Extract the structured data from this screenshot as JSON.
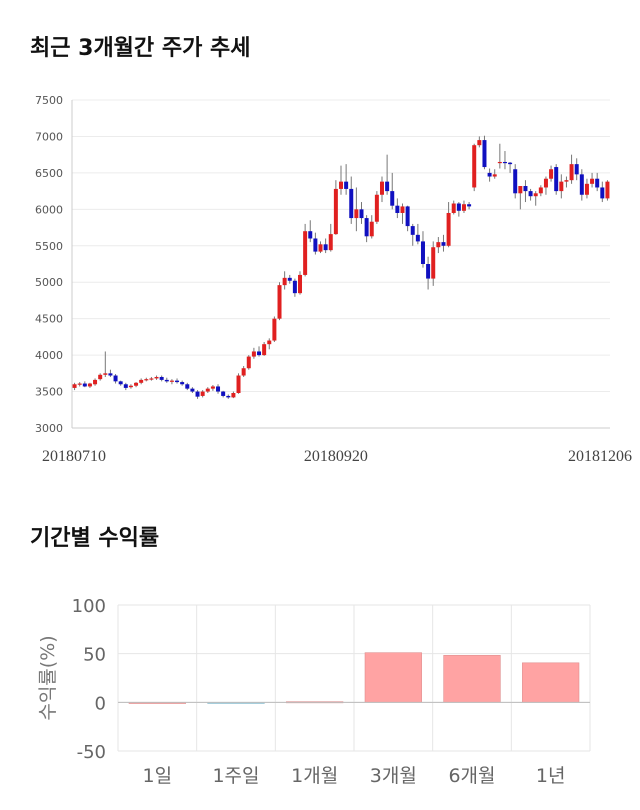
{
  "sections": {
    "price_title": "최근 3개월간 주가 추세",
    "returns_title": "기간별 수익률"
  },
  "chart_data": [
    {
      "type": "candlestick",
      "title": "최근 3개월간 주가 추세",
      "ylim": [
        3000,
        7500
      ],
      "yticks": [
        "3000",
        "3500",
        "4000",
        "4500",
        "5000",
        "5500",
        "6000",
        "6500",
        "7000",
        "7500"
      ],
      "xtick_labels": [
        "20180710",
        "20180920",
        "20181206"
      ],
      "xtick_index": [
        0,
        51,
        104
      ],
      "grid": true,
      "up_color": "#e02020",
      "down_color": "#1010c0",
      "candles": [
        [
          3550,
          3620,
          3520,
          3600
        ],
        [
          3600,
          3630,
          3570,
          3610
        ],
        [
          3610,
          3640,
          3560,
          3570
        ],
        [
          3570,
          3620,
          3550,
          3610
        ],
        [
          3600,
          3680,
          3580,
          3660
        ],
        [
          3670,
          3750,
          3650,
          3730
        ],
        [
          3730,
          4050,
          3700,
          3750
        ],
        [
          3750,
          3800,
          3700,
          3720
        ],
        [
          3720,
          3740,
          3610,
          3640
        ],
        [
          3640,
          3650,
          3580,
          3600
        ],
        [
          3600,
          3620,
          3520,
          3550
        ],
        [
          3560,
          3600,
          3540,
          3580
        ],
        [
          3580,
          3630,
          3560,
          3620
        ],
        [
          3620,
          3680,
          3600,
          3660
        ],
        [
          3660,
          3690,
          3640,
          3670
        ],
        [
          3670,
          3700,
          3650,
          3680
        ],
        [
          3680,
          3720,
          3660,
          3700
        ],
        [
          3700,
          3720,
          3640,
          3660
        ],
        [
          3660,
          3690,
          3620,
          3640
        ],
        [
          3640,
          3670,
          3600,
          3650
        ],
        [
          3650,
          3680,
          3610,
          3630
        ],
        [
          3630,
          3650,
          3580,
          3600
        ],
        [
          3600,
          3620,
          3520,
          3540
        ],
        [
          3540,
          3560,
          3480,
          3500
        ],
        [
          3500,
          3520,
          3400,
          3430
        ],
        [
          3440,
          3520,
          3420,
          3500
        ],
        [
          3500,
          3560,
          3480,
          3540
        ],
        [
          3540,
          3590,
          3510,
          3570
        ],
        [
          3570,
          3600,
          3470,
          3500
        ],
        [
          3500,
          3510,
          3420,
          3440
        ],
        [
          3440,
          3460,
          3400,
          3420
        ],
        [
          3420,
          3500,
          3410,
          3480
        ],
        [
          3480,
          3750,
          3470,
          3720
        ],
        [
          3720,
          3850,
          3700,
          3820
        ],
        [
          3820,
          4000,
          3800,
          3980
        ],
        [
          3980,
          4100,
          3950,
          4050
        ],
        [
          4050,
          4120,
          3980,
          4000
        ],
        [
          4000,
          4180,
          3990,
          4150
        ],
        [
          4150,
          4230,
          4080,
          4200
        ],
        [
          4200,
          4530,
          4180,
          4500
        ],
        [
          4500,
          5000,
          4480,
          4960
        ],
        [
          4960,
          5150,
          4900,
          5060
        ],
        [
          5060,
          5100,
          4980,
          5020
        ],
        [
          5020,
          5050,
          4800,
          4850
        ],
        [
          4850,
          5150,
          4830,
          5100
        ],
        [
          5100,
          5800,
          5080,
          5700
        ],
        [
          5700,
          5850,
          5550,
          5600
        ],
        [
          5600,
          5680,
          5380,
          5420
        ],
        [
          5420,
          5560,
          5400,
          5520
        ],
        [
          5520,
          5600,
          5400,
          5440
        ],
        [
          5440,
          5800,
          5420,
          5660
        ],
        [
          5660,
          6400,
          5650,
          6280
        ],
        [
          6280,
          6600,
          6200,
          6380
        ],
        [
          6380,
          6620,
          6200,
          6280
        ],
        [
          6280,
          6450,
          5800,
          5880
        ],
        [
          5880,
          6300,
          5700,
          6000
        ],
        [
          6000,
          6100,
          5800,
          5880
        ],
        [
          5880,
          5920,
          5550,
          5630
        ],
        [
          5630,
          5920,
          5600,
          5830
        ],
        [
          5830,
          6250,
          5800,
          6200
        ],
        [
          6200,
          6450,
          6100,
          6380
        ],
        [
          6380,
          6750,
          6200,
          6250
        ],
        [
          6250,
          6500,
          6000,
          6050
        ],
        [
          6050,
          6150,
          5880,
          5950
        ],
        [
          5950,
          6080,
          5800,
          6040
        ],
        [
          6040,
          6050,
          5700,
          5770
        ],
        [
          5770,
          5800,
          5500,
          5650
        ],
        [
          5650,
          5800,
          5520,
          5560
        ],
        [
          5560,
          5700,
          5200,
          5250
        ],
        [
          5250,
          5350,
          4900,
          5050
        ],
        [
          5050,
          5560,
          4950,
          5480
        ],
        [
          5480,
          5620,
          5400,
          5550
        ],
        [
          5550,
          5650,
          5420,
          5500
        ],
        [
          5500,
          6100,
          5480,
          5950
        ],
        [
          5950,
          6120,
          5930,
          6080
        ],
        [
          6080,
          6100,
          5900,
          5980
        ],
        [
          5980,
          6120,
          5950,
          6070
        ],
        [
          6070,
          6100,
          6000,
          6040
        ],
        [
          6300,
          6900,
          6250,
          6880
        ],
        [
          6880,
          7000,
          6850,
          6950
        ],
        [
          6950,
          7010,
          6550,
          6580
        ],
        [
          6500,
          6560,
          6380,
          6450
        ],
        [
          6450,
          6550,
          6420,
          6480
        ],
        [
          6650,
          6900,
          6560,
          6650
        ],
        [
          6650,
          6800,
          6550,
          6640
        ],
        [
          6640,
          6650,
          6500,
          6620
        ],
        [
          6550,
          6620,
          6150,
          6220
        ],
        [
          6220,
          6300,
          6000,
          6320
        ],
        [
          6320,
          6400,
          6100,
          6250
        ],
        [
          6250,
          6280,
          6120,
          6180
        ],
        [
          6180,
          6250,
          6050,
          6220
        ],
        [
          6220,
          6330,
          6180,
          6300
        ],
        [
          6300,
          6450,
          6200,
          6420
        ],
        [
          6420,
          6600,
          6380,
          6550
        ],
        [
          6580,
          6620,
          6200,
          6250
        ],
        [
          6250,
          6480,
          6150,
          6380
        ],
        [
          6380,
          6450,
          6300,
          6400
        ],
        [
          6400,
          6750,
          6350,
          6620
        ],
        [
          6620,
          6700,
          6400,
          6480
        ],
        [
          6480,
          6550,
          6120,
          6200
        ],
        [
          6200,
          6420,
          6150,
          6350
        ],
        [
          6350,
          6500,
          6300,
          6420
        ],
        [
          6420,
          6500,
          6250,
          6300
        ],
        [
          6300,
          6380,
          6100,
          6150
        ],
        [
          6150,
          6400,
          6120,
          6380
        ]
      ]
    },
    {
      "type": "bar",
      "title": "기간별 수익률",
      "categories": [
        "1일",
        "1주일",
        "1개월",
        "3개월",
        "6개월",
        "1년"
      ],
      "values": [
        0.0,
        -0.3,
        0.7,
        51.0,
        48.3,
        40.6
      ],
      "ylabel": "수익률(%)",
      "ylim": [
        -50,
        100
      ],
      "yticks": [
        "-50",
        "0",
        "50",
        "100"
      ],
      "bar_color": "#ffa3a3",
      "neg_bar_color": "#a6d7e6"
    }
  ]
}
